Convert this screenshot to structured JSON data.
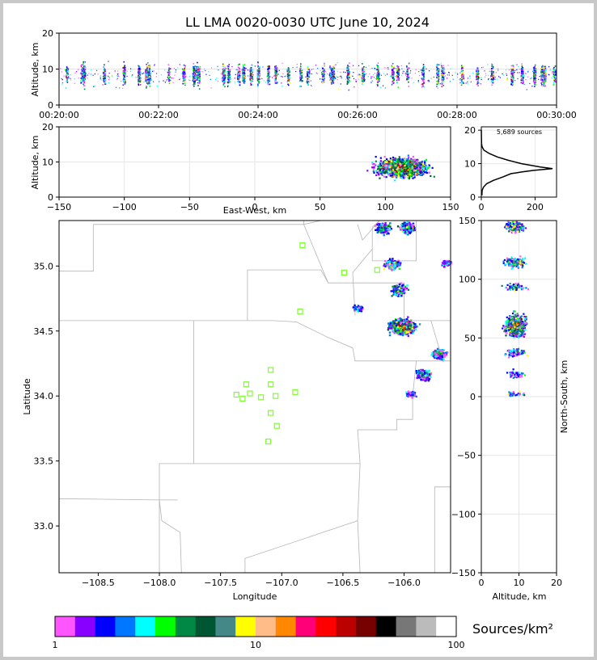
{
  "title": "LL LMA 0020-0030 UTC June 10, 2024",
  "colorbar": {
    "label": "Sources/km²",
    "tick_labels": [
      "1",
      "10",
      "100"
    ],
    "colors": [
      "#ff55ff",
      "#8800ff",
      "#0000ff",
      "#0077ff",
      "#00ffff",
      "#00ff00",
      "#008844",
      "#005533",
      "#448888",
      "#ffff00",
      "#ffbb88",
      "#ff8800",
      "#ff0077",
      "#ff0000",
      "#bb0000",
      "#770000",
      "#000000",
      "#777777",
      "#bbbbbb",
      "#ffffff"
    ]
  },
  "chart_data": [
    {
      "id": "time-height",
      "type": "scatter",
      "xlabel": "",
      "ylabel": "Altitude, km",
      "x_ticks": [
        "00:20:00",
        "00:22:00",
        "00:24:00",
        "00:26:00",
        "00:28:00",
        "00:30:00"
      ],
      "xlim": [
        "00:20:00",
        "00:30:00"
      ],
      "y_ticks": [
        "0",
        "10",
        "20"
      ],
      "ylim": [
        0,
        20
      ],
      "source_columns_minutes": [
        0.15,
        0.45,
        0.5,
        0.9,
        1.3,
        1.6,
        1.75,
        1.8,
        2.2,
        2.5,
        2.7,
        2.75,
        2.8,
        3.3,
        3.4,
        3.6,
        3.7,
        3.85,
        4.0,
        4.2,
        4.35,
        4.6,
        4.85,
        5.0,
        5.3,
        5.45,
        5.5,
        5.8,
        6.1,
        6.4,
        6.7,
        6.8,
        7.0,
        7.3,
        7.6,
        7.7,
        8.1,
        8.4,
        8.7,
        9.1,
        9.3,
        9.55,
        9.7,
        9.75,
        9.95
      ]
    },
    {
      "id": "east-west-altitude",
      "type": "heatmap",
      "xlabel": "East-West, km",
      "ylabel": "Altitude, km",
      "x_ticks": [
        "−150",
        "−100",
        "−50",
        "0",
        "50",
        "100",
        "150"
      ],
      "xlim": [
        -150,
        150
      ],
      "y_ticks": [
        "0",
        "10",
        "20"
      ],
      "ylim": [
        0,
        20
      ]
    },
    {
      "id": "altitude-histogram",
      "type": "line",
      "annotation": "5,689 sources",
      "x_ticks": [
        "0",
        "200"
      ],
      "xlim": [
        0,
        280
      ],
      "y_ticks": [
        "0",
        "10",
        "20"
      ],
      "ylim": [
        0,
        21
      ],
      "profile": [
        [
          0.5,
          2
        ],
        [
          2,
          3
        ],
        [
          3,
          8
        ],
        [
          4,
          20
        ],
        [
          5,
          45
        ],
        [
          6,
          80
        ],
        [
          7,
          110
        ],
        [
          7.5,
          150
        ],
        [
          8,
          195
        ],
        [
          8.5,
          265
        ],
        [
          9,
          220
        ],
        [
          10,
          150
        ],
        [
          11,
          100
        ],
        [
          12,
          60
        ],
        [
          13,
          30
        ],
        [
          14,
          10
        ],
        [
          15,
          3
        ],
        [
          16,
          1
        ],
        [
          20,
          0
        ]
      ]
    },
    {
      "id": "plan-view",
      "type": "heatmap",
      "xlabel": "Longitude",
      "ylabel": "Latitude",
      "x_ticks": [
        "−108.5",
        "−108.0",
        "−107.5",
        "−107.0",
        "−106.5",
        "−106.0"
      ],
      "xlim": [
        -108.82,
        -105.62
      ],
      "y_ticks": [
        "33.0",
        "33.5",
        "34.0",
        "34.5",
        "35.0"
      ],
      "ylim": [
        32.64,
        35.35
      ],
      "stations": [
        [
          -106.83,
          35.16
        ],
        [
          -106.49,
          34.95
        ],
        [
          -106.22,
          34.97
        ],
        [
          -106.85,
          34.65
        ],
        [
          -107.09,
          34.2
        ],
        [
          -107.29,
          34.09
        ],
        [
          -107.09,
          34.09
        ],
        [
          -107.37,
          34.01
        ],
        [
          -107.26,
          34.02
        ],
        [
          -107.32,
          33.98
        ],
        [
          -107.17,
          33.99
        ],
        [
          -107.05,
          34.0
        ],
        [
          -106.89,
          34.03
        ],
        [
          -107.09,
          33.87
        ],
        [
          -107.04,
          33.77
        ],
        [
          -107.11,
          33.65
        ]
      ],
      "clusters": [
        {
          "lon": -106.02,
          "lat": 34.54,
          "max_level": "high"
        },
        {
          "lon": -106.1,
          "lat": 35.02,
          "max_level": "medium"
        },
        {
          "lon": -106.05,
          "lat": 34.82,
          "max_level": "medium"
        },
        {
          "lon": -106.18,
          "lat": 35.3,
          "max_level": "medium"
        },
        {
          "lon": -105.98,
          "lat": 35.3,
          "max_level": "medium"
        },
        {
          "lon": -105.72,
          "lat": 34.33,
          "max_level": "medium"
        },
        {
          "lon": -105.85,
          "lat": 34.17,
          "max_level": "medium"
        },
        {
          "lon": -106.38,
          "lat": 34.68,
          "max_level": "low"
        },
        {
          "lon": -105.95,
          "lat": 34.02,
          "max_level": "low"
        },
        {
          "lon": -105.65,
          "lat": 35.03,
          "max_level": "low"
        }
      ]
    },
    {
      "id": "altitude-north-south",
      "type": "heatmap",
      "xlabel": "Altitude, km",
      "ylabel": "North-South, km",
      "x_ticks": [
        "0",
        "10",
        "20"
      ],
      "xlim": [
        0,
        20
      ],
      "y_ticks": [
        "150",
        "100",
        "50",
        "0",
        "−50",
        "−100",
        "−150"
      ],
      "ylim": [
        -150,
        150
      ]
    }
  ]
}
